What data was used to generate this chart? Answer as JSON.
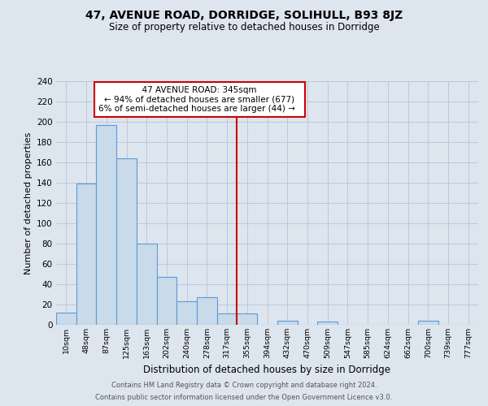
{
  "title": "47, AVENUE ROAD, DORRIDGE, SOLIHULL, B93 8JZ",
  "subtitle": "Size of property relative to detached houses in Dorridge",
  "xlabel": "Distribution of detached houses by size in Dorridge",
  "ylabel": "Number of detached properties",
  "bin_labels": [
    "10sqm",
    "48sqm",
    "87sqm",
    "125sqm",
    "163sqm",
    "202sqm",
    "240sqm",
    "278sqm",
    "317sqm",
    "355sqm",
    "394sqm",
    "432sqm",
    "470sqm",
    "509sqm",
    "547sqm",
    "585sqm",
    "624sqm",
    "662sqm",
    "700sqm",
    "739sqm",
    "777sqm"
  ],
  "bin_values": [
    12,
    139,
    197,
    164,
    80,
    47,
    23,
    27,
    11,
    11,
    0,
    4,
    0,
    3,
    0,
    0,
    0,
    0,
    4,
    0,
    0
  ],
  "bar_color": "#c9daea",
  "bar_edge_color": "#5b9bd5",
  "vline_x": 8.47,
  "vline_color": "#cc0000",
  "annotation_title": "47 AVENUE ROAD: 345sqm",
  "annotation_line1": "← 94% of detached houses are smaller (677)",
  "annotation_line2": "6% of semi-detached houses are larger (44) →",
  "annotation_box_color": "#ffffff",
  "annotation_box_edge": "#cc0000",
  "ylim": [
    0,
    240
  ],
  "yticks": [
    0,
    20,
    40,
    60,
    80,
    100,
    120,
    140,
    160,
    180,
    200,
    220,
    240
  ],
  "footer_line1": "Contains HM Land Registry data © Crown copyright and database right 2024.",
  "footer_line2": "Contains public sector information licensed under the Open Government Licence v3.0.",
  "background_color": "#dde5ef",
  "plot_background": "#dde5ef",
  "grid_color": "#b8c4d4"
}
